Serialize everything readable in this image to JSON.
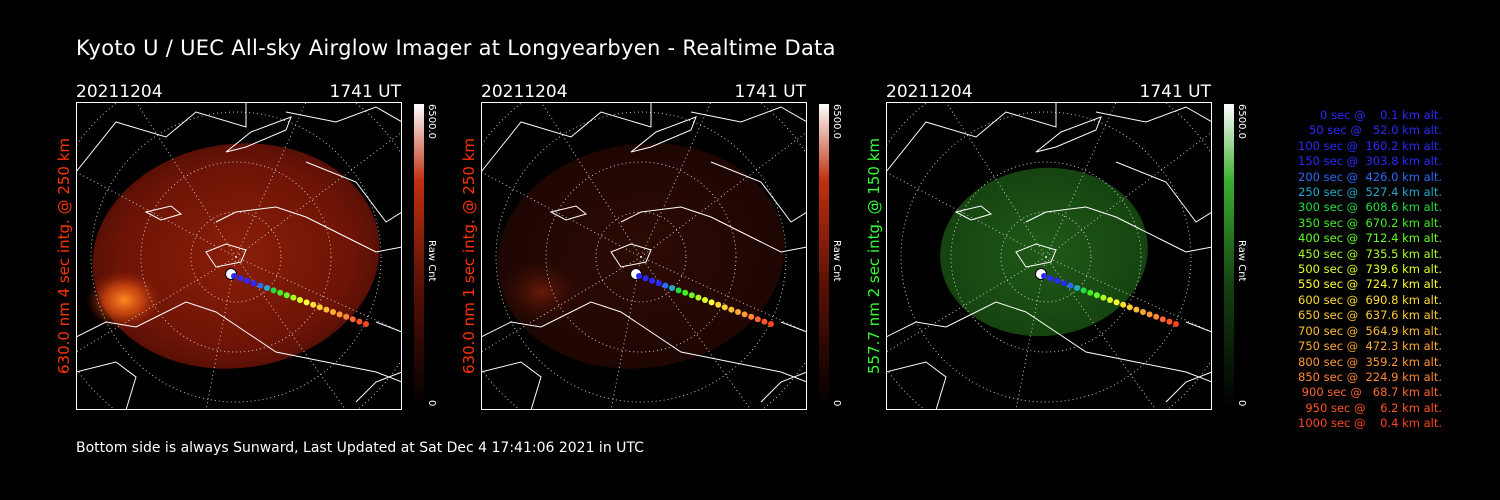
{
  "title": "Kyoto U / UEC All-sky Airglow Imager at Longyearbyen - Realtime Data",
  "footer": "Bottom side is always Sunward, Last Updated at Sat Dec  4 17:41:06 2021 in UTC",
  "panels": [
    {
      "date": "20211204",
      "time": "1741 UT",
      "side_label": "630.0 nm 4 sec intg. @ 250 km",
      "cbar_max": "6500.0",
      "cbar_unit": "Raw Cnt",
      "cbar_min": "0",
      "color": "#ff3300"
    },
    {
      "date": "20211204",
      "time": "1741 UT",
      "side_label": "630.0 nm 1 sec intg. @ 250 km",
      "cbar_max": "6500.0",
      "cbar_unit": "Raw Cnt",
      "cbar_min": "0",
      "color": "#ff3300"
    },
    {
      "date": "20211204",
      "time": "1741 UT",
      "side_label": "557.7 nm 2 sec intg. @ 150 km",
      "cbar_max": "6500.0",
      "cbar_unit": "Raw Cnt",
      "cbar_min": "0",
      "color": "#33ff33"
    }
  ],
  "legend": [
    {
      "text": "   0 sec @    0.1 km alt.",
      "color": "#2a2aff"
    },
    {
      "text": "  50 sec @   52.0 km alt.",
      "color": "#2a2aff"
    },
    {
      "text": " 100 sec @  160.2 km alt.",
      "color": "#2a2aff"
    },
    {
      "text": " 150 sec @  303.8 km alt.",
      "color": "#2a2aff"
    },
    {
      "text": " 200 sec @  426.0 km alt.",
      "color": "#2a6aff"
    },
    {
      "text": " 250 sec @  527.4 km alt.",
      "color": "#22aacc"
    },
    {
      "text": " 300 sec @  608.6 km alt.",
      "color": "#22dd44"
    },
    {
      "text": " 350 sec @  670.2 km alt.",
      "color": "#44ee22"
    },
    {
      "text": " 400 sec @  712.4 km alt.",
      "color": "#66ff22"
    },
    {
      "text": " 450 sec @  735.5 km alt.",
      "color": "#aaff22"
    },
    {
      "text": " 500 sec @  739.6 km alt.",
      "color": "#ddff22"
    },
    {
      "text": " 550 sec @  724.7 km alt.",
      "color": "#ffff33"
    },
    {
      "text": " 600 sec @  690.8 km alt.",
      "color": "#ffdd33"
    },
    {
      "text": " 650 sec @  637.6 km alt.",
      "color": "#ffcc33"
    },
    {
      "text": " 700 sec @  564.9 km alt.",
      "color": "#ffbb33"
    },
    {
      "text": " 750 sec @  472.3 km alt.",
      "color": "#ffaa33"
    },
    {
      "text": " 800 sec @  359.2 km alt.",
      "color": "#ff9933"
    },
    {
      "text": " 850 sec @  224.9 km alt.",
      "color": "#ff8833"
    },
    {
      "text": " 900 sec @   68.7 km alt.",
      "color": "#ff6633"
    },
    {
      "text": " 950 sec @    6.2 km alt.",
      "color": "#ff5522"
    },
    {
      "text": "1000 sec @    0.4 km alt.",
      "color": "#ff4422"
    }
  ]
}
